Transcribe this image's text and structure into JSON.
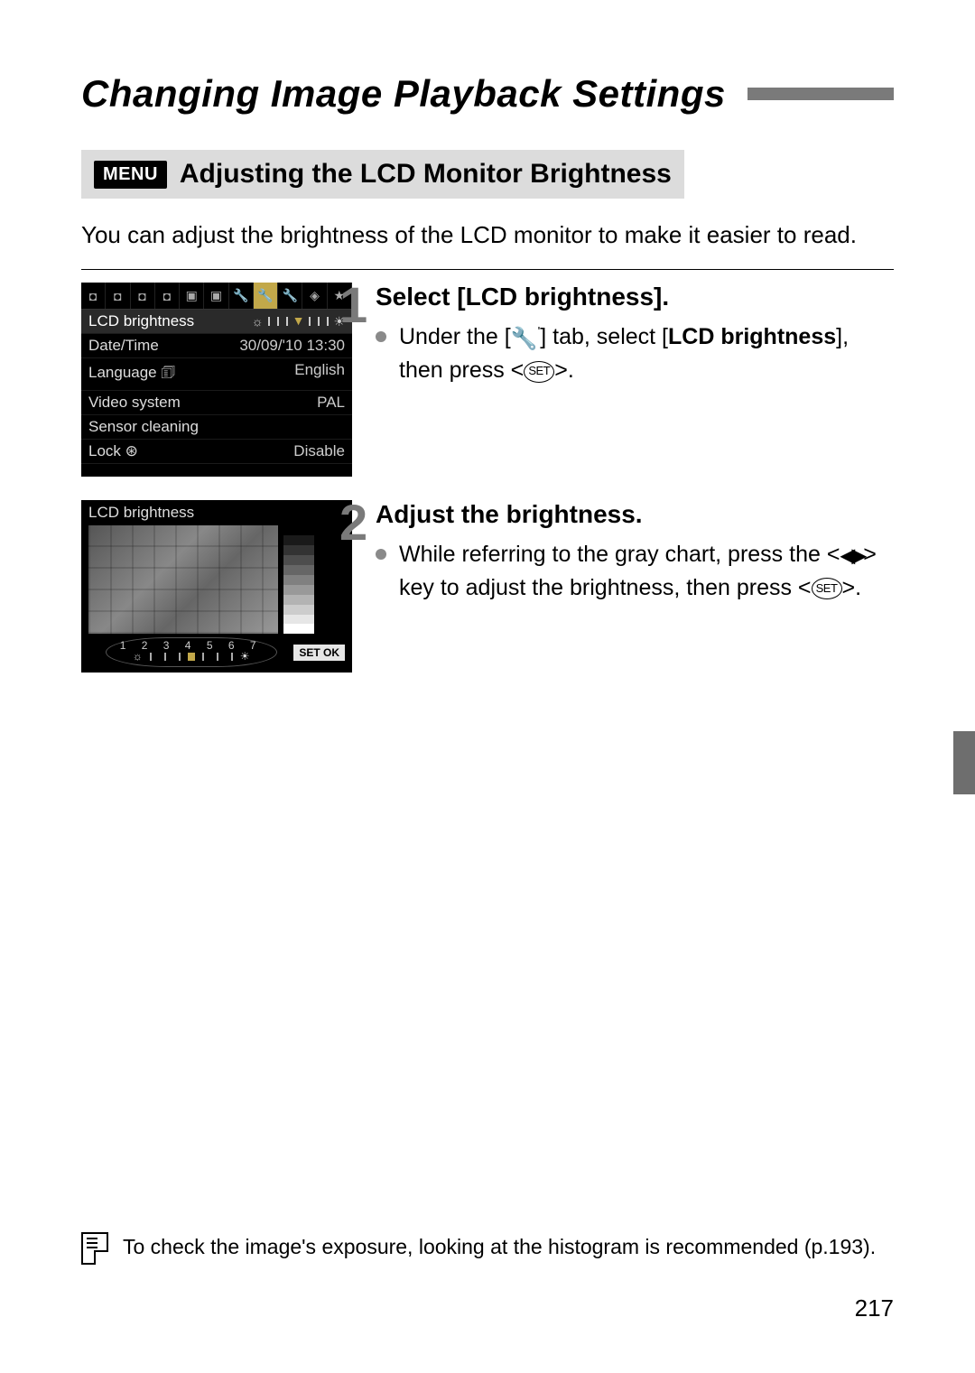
{
  "title": "Changing Image Playback Settings",
  "subheading": {
    "badge": "MENU",
    "text": "Adjusting the LCD Monitor Brightness"
  },
  "intro": "You can adjust the brightness of the LCD monitor to make it easier to read.",
  "steps": [
    {
      "num": "1",
      "title": "Select [LCD brightness].",
      "bullet_pre": "Under the [",
      "bullet_mid": "] tab, select [",
      "bullet_bold": "LCD brightness",
      "bullet_post1": "], then press <",
      "bullet_post2": ">."
    },
    {
      "num": "2",
      "title": "Adjust the brightness.",
      "bullet_pre": "While referring to the gray chart, press the <",
      "bullet_mid": "> key to adjust the brightness, then press <",
      "bullet_post": ">."
    }
  ],
  "cam_menu": {
    "rows": [
      {
        "label": "LCD brightness",
        "value": ""
      },
      {
        "label": "Date/Time",
        "value": "30/09/'10 13:30"
      },
      {
        "label": "Language",
        "value": "English"
      },
      {
        "label": "Video system",
        "value": "PAL"
      },
      {
        "label": "Sensor cleaning",
        "value": ""
      },
      {
        "label": "Lock",
        "value": "Disable"
      }
    ],
    "tab_icons": [
      "◘",
      "◘",
      "◘",
      "◘",
      "▣",
      "▣",
      "🔧",
      "🔧",
      "🔧",
      "◈",
      "★"
    ]
  },
  "cam_adj": {
    "title": "LCD brightness",
    "set_ok": "SET  OK",
    "scale_nums": "1 2 3 4 5 6 7",
    "gray_steps": [
      "#000000",
      "#1a1a1a",
      "#333333",
      "#4d4d4d",
      "#666666",
      "#808080",
      "#999999",
      "#b3b3b3",
      "#cccccc",
      "#e6e6e6",
      "#ffffff"
    ]
  },
  "icons": {
    "wrench": "🔧",
    "wrench_sup": "'",
    "set_label": "SET",
    "left_right": "◀▶",
    "lock": "⊛",
    "lang": "🗊",
    "sun_small": "☼",
    "sun_big": "☀"
  },
  "note": "To check the image's exposure, looking at the histogram is recommended (p.193).",
  "page_number": "217",
  "colors": {
    "title_bar": "#7a7a7a",
    "subhead_bg": "#dcdcdc",
    "step_num": "#7a7a7a",
    "bullet": "#8a8a8a",
    "edge_tab": "#6e6e6e",
    "menu_highlight": "#c2a84a"
  }
}
